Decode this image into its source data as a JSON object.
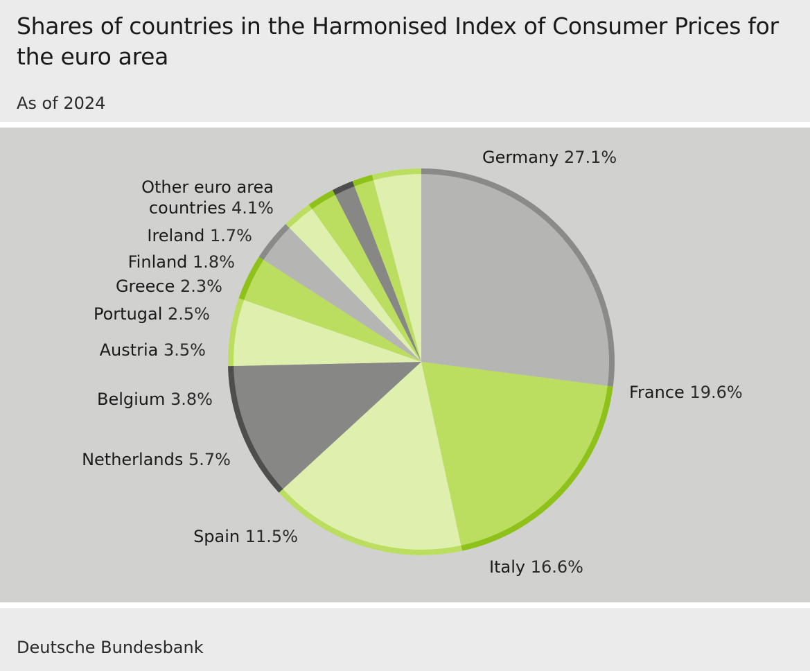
{
  "header": {
    "title": "Shares of countries in the Harmonised Index of Consumer Prices for the euro area",
    "subtitle": "As of 2024"
  },
  "footer": {
    "source": "Deutsche Bundesbank"
  },
  "chart_data": {
    "type": "pie",
    "title": "Shares of countries in the Harmonised Index of Consumer Prices for the euro area",
    "subtitle": "As of 2024",
    "unit": "%",
    "start_angle_deg": 0,
    "direction": "clockwise",
    "slices": [
      {
        "name": "Germany",
        "value": 27.1,
        "label_value": "27.1%",
        "fill": "#b5b5b3",
        "rim": "#8a8a88"
      },
      {
        "name": "France",
        "value": 19.6,
        "label_value": "19.6%",
        "fill": "#bbde60",
        "rim": "#8ec21a"
      },
      {
        "name": "Italy",
        "value": 16.6,
        "label_value": "16.6%",
        "fill": "#dff0ae",
        "rim": "#bbde60"
      },
      {
        "name": "Spain",
        "value": 11.5,
        "label_value": "11.5%",
        "fill": "#878785",
        "rim": "#4e4e4d"
      },
      {
        "name": "Netherlands",
        "value": 5.7,
        "label_value": "5.7%",
        "fill": "#dff0ae",
        "rim": "#bbde60"
      },
      {
        "name": "Belgium",
        "value": 3.8,
        "label_value": "3.8%",
        "fill": "#bbde60",
        "rim": "#8ec21a"
      },
      {
        "name": "Austria",
        "value": 3.5,
        "label_value": "3.5%",
        "fill": "#b5b5b3",
        "rim": "#8a8a88"
      },
      {
        "name": "Portugal",
        "value": 2.5,
        "label_value": "2.5%",
        "fill": "#dff0ae",
        "rim": "#bbde60"
      },
      {
        "name": "Greece",
        "value": 2.3,
        "label_value": "2.3%",
        "fill": "#bbde60",
        "rim": "#8ec21a"
      },
      {
        "name": "Finland",
        "value": 1.8,
        "label_value": "1.8%",
        "fill": "#878785",
        "rim": "#4e4e4d"
      },
      {
        "name": "Ireland",
        "value": 1.7,
        "label_value": "1.7%",
        "fill": "#bbde60",
        "rim": "#8ec21a"
      },
      {
        "name": "Other euro area countries",
        "name_lines": [
          "Other euro area",
          "countries"
        ],
        "value": 4.1,
        "label_value": "4.1%",
        "fill": "#dff0ae",
        "rim": "#bbde60"
      }
    ]
  }
}
